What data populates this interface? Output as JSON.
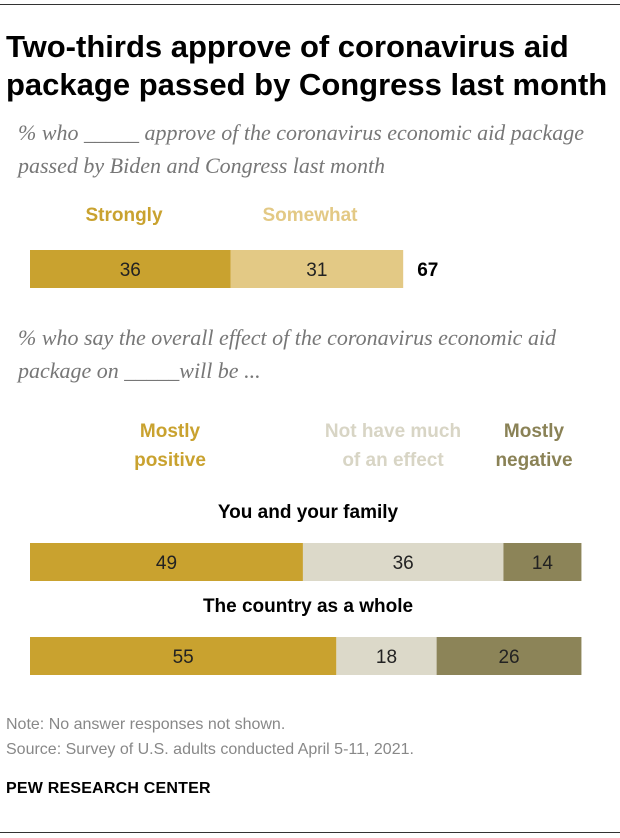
{
  "header": {
    "title": "Two-thirds approve of coronavirus aid package passed by Congress last month"
  },
  "section1": {
    "subtitle": "% who _____ approve of the coronavirus economic aid package passed by Biden and Congress last month",
    "legend": {
      "strongly": "Strongly",
      "somewhat": "Somewhat"
    }
  },
  "section2": {
    "subtitle": "% who say the overall effect of the coronavirus economic aid package on _____will be ...",
    "legend": {
      "positive_line1": "Mostly",
      "positive_line2": "positive",
      "nomuch_line1": "Not have much",
      "nomuch_line2": "of an effect",
      "negative_line1": "Mostly",
      "negative_line2": "negative"
    },
    "row_labels": [
      "You and your family",
      "The country as a whole"
    ]
  },
  "colors": {
    "strongly": "#C9A22F",
    "somewhat": "#E3C985",
    "positive": "#C9A22F",
    "nomuch": "#DCD9C9",
    "negative": "#8C8458",
    "nomuch_legend": "#D8D5C5",
    "negative_legend": "#8A8256"
  },
  "chart_data": [
    {
      "type": "bar",
      "orientation": "horizontal",
      "stacked": true,
      "categories": [
        ""
      ],
      "series": [
        {
          "name": "Strongly",
          "values": [
            36
          ]
        },
        {
          "name": "Somewhat",
          "values": [
            31
          ]
        }
      ],
      "totals": [
        67
      ],
      "title": "% who _____ approve of the coronavirus economic aid package passed by Biden and Congress last month"
    },
    {
      "type": "bar",
      "orientation": "horizontal",
      "stacked": true,
      "categories": [
        "You and your family",
        "The country as a whole"
      ],
      "series": [
        {
          "name": "Mostly positive",
          "values": [
            49,
            55
          ]
        },
        {
          "name": "Not have much of an effect",
          "values": [
            36,
            18
          ]
        },
        {
          "name": "Mostly negative",
          "values": [
            14,
            26
          ]
        }
      ],
      "title": "% who say the overall effect of the coronavirus economic aid package on _____will be ..."
    }
  ],
  "footer": {
    "note": "Note: No answer responses not shown.",
    "source": "Source: Survey of U.S. adults conducted April 5-11, 2021.",
    "brand": "PEW RESEARCH CENTER"
  }
}
